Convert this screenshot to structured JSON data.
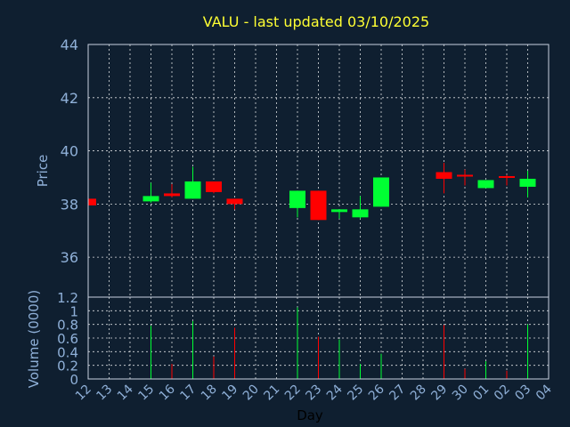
{
  "chart_data": {
    "type": "candlestick",
    "title": "VALU - last updated 03/10/2025",
    "price_panel": {
      "ylabel": "Price",
      "ylim": [
        34.5,
        44
      ],
      "yticks": [
        "36",
        "38",
        "40",
        "42",
        "44"
      ]
    },
    "volume_panel": {
      "ylabel": "Volume (0000)",
      "ylim": [
        0,
        1.2
      ],
      "yticks": [
        "0",
        "0.2",
        "0.4",
        "0.6",
        "0.8",
        "1",
        "1.2"
      ]
    },
    "xlabel": "Day",
    "x_tick_labels": [
      "12",
      "13",
      "14",
      "15",
      "16",
      "17",
      "18",
      "19",
      "20",
      "21",
      "22",
      "23",
      "24",
      "25",
      "26",
      "27",
      "28",
      "29",
      "30",
      "01",
      "02",
      "03",
      "04"
    ],
    "up_color": "#00ff33",
    "down_color": "#ff0000",
    "candles": [
      {
        "day": "12",
        "open": 38.2,
        "close": 37.95,
        "high": 38.25,
        "low": 37.9,
        "volume": 0.02
      },
      {
        "day": "15",
        "open": 38.1,
        "close": 38.3,
        "high": 38.8,
        "low": 38.05,
        "volume": 0.78
      },
      {
        "day": "16",
        "open": 38.4,
        "close": 38.3,
        "high": 38.75,
        "low": 38.25,
        "volume": 0.22
      },
      {
        "day": "17",
        "open": 38.2,
        "close": 38.85,
        "high": 39.4,
        "low": 38.2,
        "volume": 0.85
      },
      {
        "day": "18",
        "open": 38.85,
        "close": 38.45,
        "high": 38.85,
        "low": 38.4,
        "volume": 0.33
      },
      {
        "day": "19",
        "open": 38.2,
        "close": 38.0,
        "high": 38.2,
        "low": 37.8,
        "volume": 0.75
      },
      {
        "day": "22",
        "open": 37.85,
        "close": 38.5,
        "high": 38.5,
        "low": 37.5,
        "volume": 1.05
      },
      {
        "day": "23",
        "open": 38.5,
        "close": 37.4,
        "high": 38.5,
        "low": 37.4,
        "volume": 0.62
      },
      {
        "day": "24",
        "open": 37.7,
        "close": 37.8,
        "high": 37.8,
        "low": 37.45,
        "volume": 0.58
      },
      {
        "day": "25",
        "open": 37.5,
        "close": 37.8,
        "high": 38.3,
        "low": 37.45,
        "volume": 0.22
      },
      {
        "day": "26",
        "open": 37.9,
        "close": 39.0,
        "high": 39.0,
        "low": 37.9,
        "volume": 0.37
      },
      {
        "day": "29",
        "open": 39.2,
        "close": 38.95,
        "high": 39.55,
        "low": 38.4,
        "volume": 0.79
      },
      {
        "day": "30",
        "open": 39.1,
        "close": 39.05,
        "high": 39.3,
        "low": 38.7,
        "volume": 0.15
      },
      {
        "day": "01",
        "open": 38.6,
        "close": 38.9,
        "high": 38.9,
        "low": 38.6,
        "volume": 0.26
      },
      {
        "day": "02",
        "open": 39.05,
        "close": 39.0,
        "high": 39.1,
        "low": 38.7,
        "volume": 0.12
      },
      {
        "day": "03",
        "open": 38.65,
        "close": 38.95,
        "high": 39.25,
        "low": 38.25,
        "volume": 0.8
      }
    ]
  }
}
